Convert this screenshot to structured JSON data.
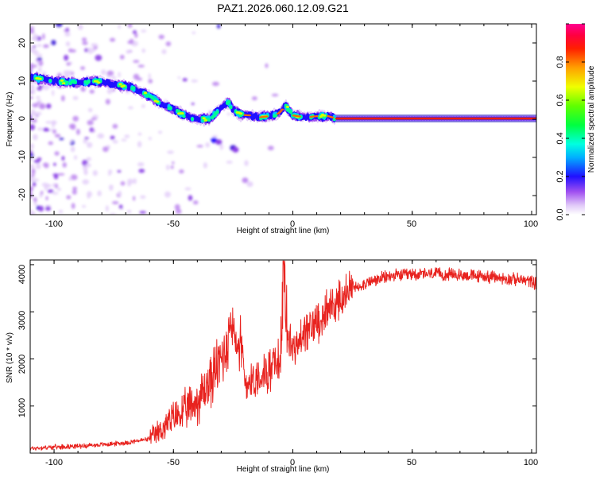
{
  "chart_data": [
    {
      "type": "heatmap",
      "title": "PAZ1.2026.060.12.09.G21",
      "xlabel": "Height of straight line (km)",
      "ylabel": "Frequency (Hz)",
      "xlim": [
        -110,
        102
      ],
      "ylim": [
        -25,
        25
      ],
      "xticks": [
        "-100",
        "-50",
        "0",
        "50",
        "100"
      ],
      "yticks": [
        "20",
        "10",
        "0",
        "-10",
        "-20"
      ],
      "grid": false,
      "colorbar": {
        "label": "Normalized spectral amplitude",
        "range": [
          0,
          1
        ],
        "ticks": [
          "0.0",
          "0.2",
          "0.4",
          "0.6",
          "0.8"
        ]
      },
      "ridge": {
        "x": [
          -110,
          -100,
          -90,
          -82,
          -75,
          -68,
          -60,
          -55,
          -50,
          -45,
          -40,
          -35,
          -30,
          -27,
          -25,
          -22,
          -18,
          -14,
          -10,
          -6,
          -3,
          0,
          5,
          10,
          15,
          18,
          102
        ],
        "freq": [
          11,
          10,
          9.5,
          10,
          9,
          8.5,
          6,
          4,
          2.5,
          1,
          0,
          0,
          3,
          4.5,
          2.5,
          1.2,
          1,
          0.5,
          0.8,
          1.5,
          3.5,
          1,
          0.5,
          0.8,
          0.8,
          0.2,
          0.2
        ]
      }
    },
    {
      "type": "line",
      "xlabel": "Height of straight line (km)",
      "ylabel": "SNR (10 * v/v)",
      "xlim": [
        -110,
        102
      ],
      "ylim": [
        0,
        4100
      ],
      "xticks": [
        "-100",
        "-50",
        "0",
        "50",
        "100"
      ],
      "yticks": [
        "4000",
        "3000",
        "2000",
        "1000"
      ],
      "grid": false,
      "series": [
        {
          "name": "SNR",
          "color": "#e8231f",
          "x": [
            -110,
            -100,
            -90,
            -80,
            -70,
            -60,
            -55,
            -50,
            -45,
            -40,
            -35,
            -30,
            -27,
            -25,
            -22,
            -20,
            -15,
            -10,
            -5,
            -4,
            -3,
            0,
            5,
            10,
            15,
            20,
            25,
            30,
            40,
            50,
            60,
            70,
            80,
            90,
            100,
            102
          ],
          "y": [
            100,
            130,
            150,
            180,
            220,
            300,
            500,
            750,
            900,
            1100,
            1500,
            2000,
            2400,
            2700,
            2300,
            1500,
            1600,
            1750,
            2000,
            3600,
            2500,
            2200,
            2500,
            2800,
            3050,
            3250,
            3500,
            3600,
            3750,
            3800,
            3800,
            3780,
            3750,
            3700,
            3650,
            3600
          ]
        }
      ]
    }
  ]
}
